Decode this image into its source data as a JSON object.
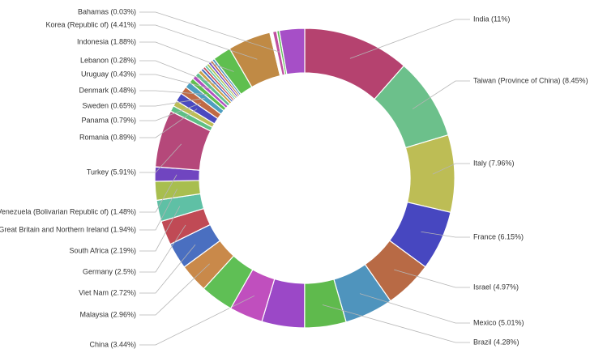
{
  "chart_data": {
    "type": "donut",
    "categories": [
      "India (11%)",
      "Taiwan (Province of China) (8.45%)",
      "Italy (7.96%)",
      "France (6.15%)",
      "Israel (4.97%)",
      "Mexico (5.01%)",
      "Brazil (4.28%)",
      null,
      "China (3.44%)",
      null,
      "Malaysia (2.96%)",
      "Viet Nam (2.72%)",
      "Germany (2.5%)",
      "South Africa (2.19%)",
      "Great Britain and Northern Ireland (1.94%)",
      "Venezuela (Bolivarian Republic of) (1.48%)",
      "Turkey (5.91%)",
      null,
      null,
      "Romania (0.89%)",
      "Panama (0.79%)",
      "Sweden (0.65%)",
      "Denmark (0.48%)",
      null,
      "Uruguay (0.43%)",
      null,
      "Lebanon (0.28%)",
      null,
      null,
      null,
      null,
      null,
      null,
      "Indonesia (1.88%)",
      "Korea (Republic of) (4.41%)",
      null,
      null,
      "Bahamas (0.03%)",
      null,
      null
    ],
    "values": [
      11,
      8.45,
      7.96,
      6.15,
      4.97,
      5.01,
      4.28,
      4.4,
      3.44,
      3.4,
      2.96,
      2.72,
      2.5,
      2.19,
      1.94,
      1.48,
      5.91,
      0.6,
      0.6,
      0.89,
      0.79,
      0.65,
      0.48,
      0.4,
      0.43,
      0.35,
      0.28,
      0.25,
      0.25,
      0.25,
      0.25,
      0.25,
      0.25,
      1.88,
      4.41,
      0.3,
      0.4,
      0.03,
      0.25,
      2.6
    ],
    "colors": [
      "#b5426f",
      "#6cc08b",
      "#bdbd55",
      "#4747c0",
      "#b86a45",
      "#4f94bd",
      "#5fba4d",
      "#9b48c7",
      "#c04fbe",
      "#5fbf55",
      "#c9894a",
      "#4a6fc0",
      "#c04a55",
      "#5fc0a5",
      "#a8be4f",
      "#7045c0",
      "#b5487a",
      "#5fbf85",
      "#bdbd55",
      "#4a4ac0",
      "#c06a45",
      "#4f9fc0",
      "#5fbf4f",
      "#b04fbf",
      "#5fc08f",
      "#c9a04a",
      "#4a6fc0",
      "#c04a55",
      "#5fc0a5",
      "#a8be4f",
      "#7045c0",
      "#c06a45",
      "#4f94bd",
      "#5fbf4f",
      "#c08a45",
      "#ffffff",
      "#c04f9f",
      "#5fbf55",
      "#5fbf55",
      "#a64fc7"
    ]
  }
}
